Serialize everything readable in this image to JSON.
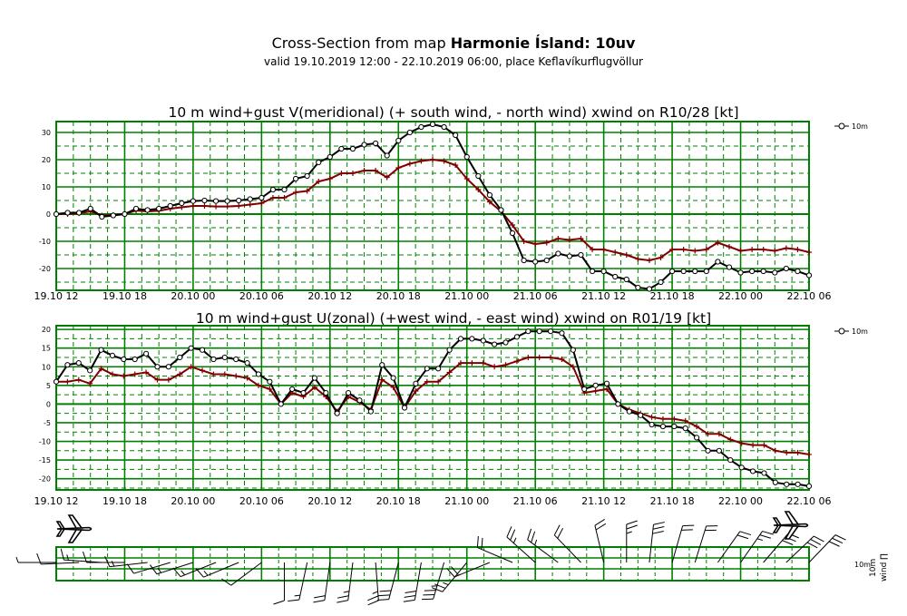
{
  "header": {
    "title_prefix": "Cross-Section from map",
    "title_bold": "Harmonie Ísland: 10uv",
    "subtitle": "valid 19.10.2019 12:00 - 22.10.2019 06:00, place Keflavíkurflugvöllur"
  },
  "colors": {
    "grid": "#008000",
    "series_black": "#000000",
    "series_red": "#800000"
  },
  "icons": [
    "airplane-icon",
    "airplane-icon"
  ],
  "chart_data": [
    {
      "type": "line",
      "title": "10 m wind+gust V(meridional) (+ south wind, - north wind) xwind on R10/28 [kt]",
      "xlabel": "",
      "ylabel": "",
      "x_ticks": [
        "19.10 12",
        "19.10 18",
        "20.10 00",
        "20.10 06",
        "20.10 12",
        "20.10 18",
        "21.10 00",
        "21.10 06",
        "21.10 12",
        "21.10 18",
        "22.10 00",
        "22.10 06"
      ],
      "x_range_hours": [
        0,
        66
      ],
      "ylim": [
        -28,
        34
      ],
      "y_ticks": [
        30,
        20,
        10,
        0,
        -10,
        -20
      ],
      "grid": true,
      "legend": {
        "position": "top-right",
        "label": "10m"
      },
      "series": [
        {
          "name": "10m",
          "color": "#000000",
          "marker": "circle",
          "values": [
            0,
            0.5,
            0.5,
            2,
            -1,
            -0.5,
            0,
            2,
            1.5,
            2,
            3,
            4,
            4.8,
            5,
            4.8,
            4.8,
            5,
            5.5,
            6,
            9,
            9,
            13,
            14,
            19,
            21,
            24,
            24,
            25.5,
            26,
            21.5,
            27,
            30,
            32,
            33,
            32,
            29,
            21,
            14,
            7,
            1.5,
            -7,
            -17,
            -17.5,
            -17,
            -14.5,
            -15.5,
            -15,
            -21,
            -21,
            -23,
            -24,
            -27,
            -27.5,
            -25,
            -21,
            -21,
            -21,
            -21,
            -17.5,
            -19.5,
            -21.5,
            -21,
            -21,
            -21.5,
            -20,
            -21,
            -22.5
          ]
        },
        {
          "color": "#800000",
          "marker": "plus",
          "values": [
            0,
            0,
            0.3,
            1,
            -0.5,
            -0.3,
            0,
            1.3,
            1,
            1.2,
            2,
            2.5,
            3,
            3,
            2.8,
            2.8,
            3,
            3.5,
            4,
            6,
            6,
            8,
            8.5,
            12,
            13,
            15,
            15,
            16,
            16,
            13.5,
            17,
            18.5,
            19.5,
            20,
            19.5,
            18,
            13,
            9,
            4.5,
            1,
            -4,
            -10,
            -11,
            -10.5,
            -9,
            -9.5,
            -9,
            -13,
            -13,
            -14,
            -15,
            -16.5,
            -17,
            -16,
            -13,
            -13,
            -13.5,
            -13,
            -10.5,
            -12,
            -13.5,
            -13,
            -13,
            -13.5,
            -12.5,
            -13,
            -14
          ]
        }
      ]
    },
    {
      "type": "line",
      "title": "10 m wind+gust U(zonal) (+west wind, - east wind) xwind on R01/19 [kt]",
      "xlabel": "",
      "ylabel": "",
      "x_ticks": [
        "19.10 12",
        "19.10 18",
        "20.10 00",
        "20.10 06",
        "20.10 12",
        "20.10 18",
        "21.10 00",
        "21.10 06",
        "21.10 12",
        "21.10 18",
        "22.10 00",
        "22.10 06"
      ],
      "x_range_hours": [
        0,
        66
      ],
      "ylim": [
        -23,
        21
      ],
      "y_ticks": [
        20,
        15,
        10,
        5,
        0,
        -5,
        -10,
        -15,
        -20
      ],
      "grid": true,
      "legend": {
        "position": "top-right",
        "label": "10m"
      },
      "series": [
        {
          "name": "10m",
          "color": "#000000",
          "marker": "circle",
          "values": [
            6,
            10.5,
            11,
            9,
            14.5,
            13,
            12,
            12,
            13.5,
            10,
            10,
            12.5,
            15,
            14.5,
            12,
            12.5,
            12,
            11,
            8,
            6,
            0,
            4,
            3,
            7,
            3,
            -2.5,
            3,
            1,
            -2,
            10.5,
            7,
            -1,
            5.5,
            9.5,
            9.5,
            14.5,
            17.5,
            17.5,
            17,
            16,
            16.5,
            18,
            19.5,
            19.5,
            19.5,
            19,
            14.5,
            4,
            5,
            5.5,
            0,
            -2,
            -3,
            -5.5,
            -6,
            -6,
            -6.5,
            -9,
            -12.5,
            -12.5,
            -15,
            -17,
            -18,
            -18.5,
            -21,
            -21.5,
            -21.5,
            -22
          ]
        },
        {
          "color": "#800000",
          "marker": "plus",
          "values": [
            6,
            6,
            6.5,
            5.5,
            9.5,
            8,
            7.5,
            8,
            8.5,
            6.5,
            6.5,
            8,
            10,
            9,
            8,
            8,
            7.5,
            7,
            5,
            4,
            0,
            3,
            2,
            4.5,
            2,
            -2,
            2,
            0.5,
            -1.5,
            6.5,
            4.5,
            -1,
            3.5,
            6,
            6,
            8.5,
            11,
            11,
            11,
            10,
            10.5,
            11.5,
            12.5,
            12.5,
            12.5,
            12,
            10,
            3,
            3.5,
            4,
            0,
            -1.5,
            -2.5,
            -3.5,
            -4,
            -4,
            -4.5,
            -6,
            -8,
            -8,
            -9.5,
            -10.5,
            -11,
            -11,
            -12.5,
            -13,
            -13,
            -13.5
          ]
        }
      ]
    }
  ]
}
